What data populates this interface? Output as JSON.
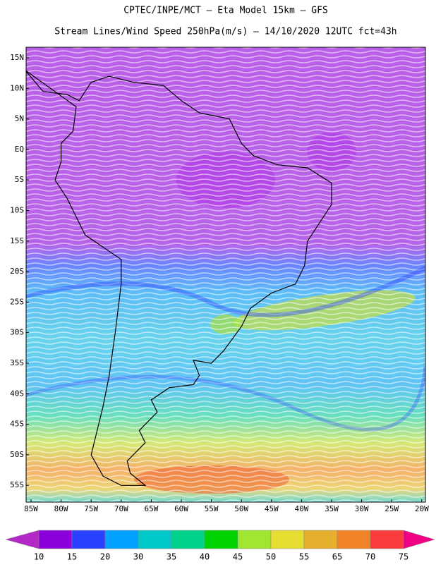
{
  "header": {
    "title": "CPTEC/INPE/MCT –  Eta Model 15km – GFS",
    "subtitle": "Stream Lines/Wind Speed 250hPa(m/s) – 14/10/2020 12UTC fct=43h"
  },
  "map": {
    "lat_labels": [
      "15N",
      "10N",
      "5N",
      "EQ",
      "5S",
      "10S",
      "15S",
      "20S",
      "25S",
      "30S",
      "35S",
      "40S",
      "45S",
      "50S",
      "55S"
    ],
    "lon_labels": [
      "85W",
      "80W",
      "75W",
      "70W",
      "65W",
      "60W",
      "55W",
      "50W",
      "45W",
      "40W",
      "35W",
      "30W",
      "25W",
      "20W"
    ]
  },
  "colorbar": {
    "labels": [
      10,
      15,
      20,
      30,
      35,
      40,
      45,
      50,
      55,
      65,
      70,
      75
    ],
    "colors": [
      "#b428c8",
      "#8c00dc",
      "#2a40ff",
      "#00a0ff",
      "#00c8c8",
      "#00d28c",
      "#00d200",
      "#a0e632",
      "#e6dc32",
      "#e6af2d",
      "#f08228",
      "#fa3c3c",
      "#f00082"
    ]
  }
}
